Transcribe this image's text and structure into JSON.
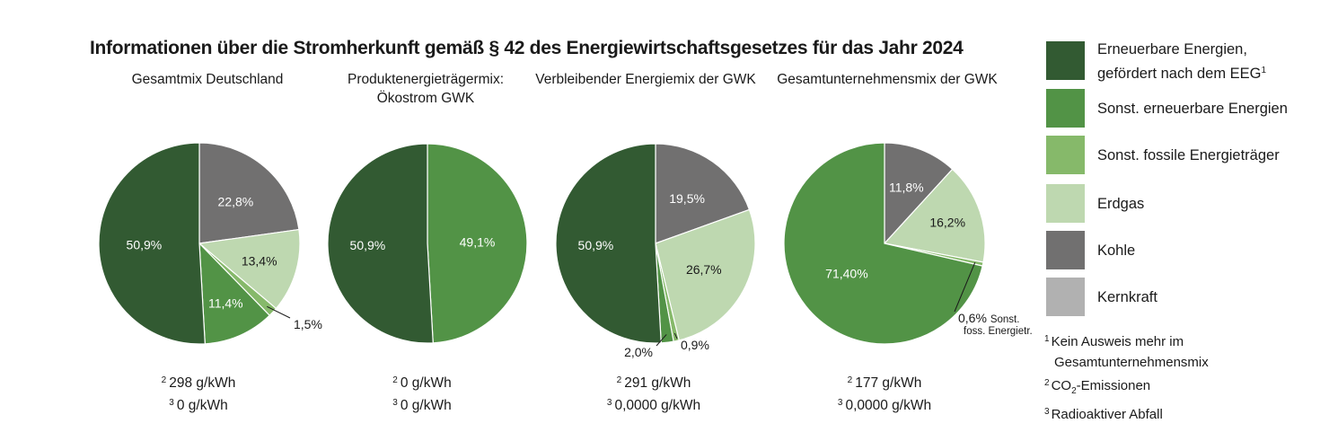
{
  "title": "Informationen über die Stromherkunft gemäß § 42 des Energiewirtschaftsgesetzes für das Jahr 2024",
  "colors": {
    "erneuerbar_eeg": "#325a32",
    "sonst_erneuerbar": "#529346",
    "sonst_fossil": "#86b96a",
    "erdgas": "#bed8b0",
    "kohle": "#717070",
    "kernkraft": "#b1b1b1"
  },
  "legend": [
    {
      "key": "erneuerbar_eeg",
      "line1": "Erneuerbare Energien,",
      "line2": "gefördert nach dem EEG",
      "sup": "1"
    },
    {
      "key": "sonst_erneuerbar",
      "line1": "Sonst. erneuerbare Energien"
    },
    {
      "key": "sonst_fossil",
      "line1": "Sonst. fossile Energieträger"
    },
    {
      "key": "erdgas",
      "line1": "Erdgas"
    },
    {
      "key": "kohle",
      "line1": "Kohle"
    },
    {
      "key": "kernkraft",
      "line1": "Kernkraft"
    }
  ],
  "notes": [
    {
      "sup": "1",
      "text": "Kein Ausweis mehr im",
      "text2": "Gesamtunternehmensmix"
    },
    {
      "sup": "2",
      "pre": "CO",
      "sub": "2",
      "text": "-Emissionen"
    },
    {
      "sup": "3",
      "text": "Radioaktiver Abfall"
    }
  ],
  "chart_data": [
    {
      "type": "pie",
      "title_lines": [
        "Gesamtmix Deutschland"
      ],
      "slices": [
        {
          "key": "kohle",
          "value": 22.8,
          "label": "22,8%"
        },
        {
          "key": "erdgas",
          "value": 13.4,
          "label": "13,4%"
        },
        {
          "key": "sonst_fossil",
          "value": 1.5,
          "label": "1,5%"
        },
        {
          "key": "sonst_erneuerbar",
          "value": 11.4,
          "label": "11,4%"
        },
        {
          "key": "erneuerbar_eeg",
          "value": 50.9,
          "label": "50,9%"
        }
      ],
      "co2": "298 g/kWh",
      "waste": "0 g/kWh"
    },
    {
      "type": "pie",
      "title_lines": [
        "Produktenergieträgermix:",
        "Ökostrom GWK"
      ],
      "slices": [
        {
          "key": "sonst_erneuerbar",
          "value": 49.1,
          "label": "49,1%"
        },
        {
          "key": "erneuerbar_eeg",
          "value": 50.9,
          "label": "50,9%"
        }
      ],
      "co2": "0 g/kWh",
      "waste": "0 g/kWh"
    },
    {
      "type": "pie",
      "title_lines": [
        "Verbleibender Energiemix der GWK"
      ],
      "slices": [
        {
          "key": "kohle",
          "value": 19.5,
          "label": "19,5%"
        },
        {
          "key": "erdgas",
          "value": 26.7,
          "label": "26,7%"
        },
        {
          "key": "sonst_fossil",
          "value": 0.9,
          "label": "0,9%"
        },
        {
          "key": "sonst_erneuerbar",
          "value": 2.0,
          "label": "2,0%"
        },
        {
          "key": "erneuerbar_eeg",
          "value": 50.9,
          "label": "50,9%"
        }
      ],
      "co2": "291 g/kWh",
      "waste": "0,0000 g/kWh"
    },
    {
      "type": "pie",
      "title_lines": [
        "Gesamtunternehmensmix der GWK"
      ],
      "slices": [
        {
          "key": "kohle",
          "value": 11.8,
          "label": "11,8%"
        },
        {
          "key": "erdgas",
          "value": 16.2,
          "label": "16,2%"
        },
        {
          "key": "sonst_fossil",
          "value": 0.6,
          "label": "0,6%",
          "label2": "Sonst.",
          "label3": "foss. Energietr."
        },
        {
          "key": "sonst_erneuerbar",
          "value": 71.4,
          "label": "71,40%"
        }
      ],
      "co2": "177 g/kWh",
      "waste": "0,0000 g/kWh"
    }
  ]
}
